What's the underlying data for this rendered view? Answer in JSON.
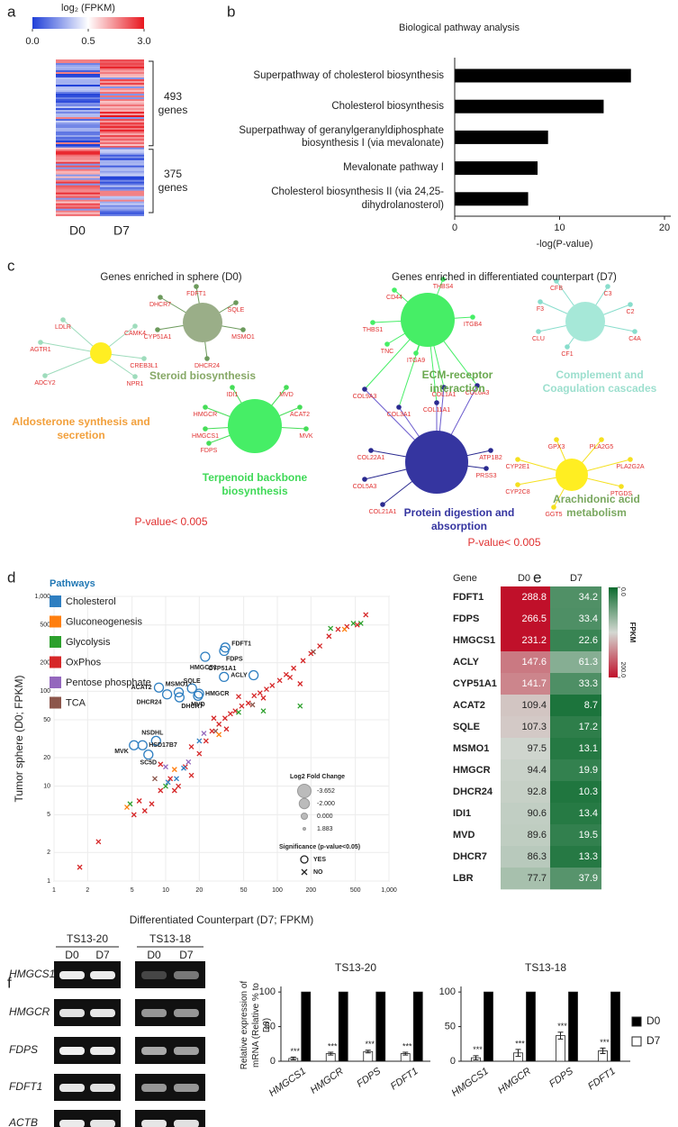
{
  "panel_labels": [
    "a",
    "b",
    "c",
    "d",
    "e",
    "f"
  ],
  "heatmap": {
    "title": "log₂ (FPKM)",
    "ticks": [
      {
        "value": 0,
        "label": "0.0"
      },
      {
        "value": 0.5,
        "label": "0.5"
      },
      {
        "value": 3,
        "label": "3.0"
      }
    ],
    "columns": [
      "D0",
      "D7"
    ],
    "groups": [
      {
        "value": 493,
        "label": "493 genes"
      },
      {
        "value": 375,
        "label": "375 genes"
      }
    ]
  },
  "networks": [
    {
      "title": "Genes enriched in sphere (D0)",
      "pvalue": "P-value< 0.005",
      "clusters": [
        {
          "label": "Aldosterone synthesis and secretion",
          "hub_color": "#ffee22",
          "label_color": "#f2a03c",
          "node_color": "#9edcbc",
          "genes": [
            "LDLR",
            "CAMK4",
            "AGTR1",
            "CREB3L1",
            "ADCY2",
            "NPR1"
          ]
        },
        {
          "label": "Steroid biosynthesis",
          "hub_color": "#9aae88",
          "label_color": "#86a866",
          "node_color": "#6c9a5c",
          "genes": [
            "FDFT1",
            "DHCR7",
            "SQLE",
            "CYP51A1",
            "MSMO1",
            "DHCR24"
          ]
        },
        {
          "label": "Terpenoid backbone biosynthesis",
          "hub_color": "#46ee66",
          "label_color": "#3fd957",
          "node_color": "#46dd58",
          "genes": [
            "IDI1",
            "MVD",
            "HMGCR",
            "ACAT2",
            "HMGCS1",
            "MVK",
            "FDPS"
          ]
        }
      ]
    },
    {
      "title": "Genes enriched in differentiated counterpart (D7)",
      "pvalue": "P-value< 0.005",
      "clusters": [
        {
          "label": "ECM-receptor interaction",
          "hub_color": "#46ee66",
          "label_color": "#6aa84f",
          "node_color": "#46ee66",
          "genes": [
            "CD44",
            "THBS4",
            "THBS1",
            "ITGB4",
            "TNC",
            "ITGA9",
            "COL9A3",
            "COL1A1",
            "COL11A1",
            "COL3A1",
            "COL6A3"
          ]
        },
        {
          "label": "Protein digestion and absorption",
          "hub_color": "#3535a0",
          "label_color": "#3535a0",
          "node_color": "#2a2a90",
          "genes": [
            "COL22A1",
            "COL5A3",
            "COL21A1",
            "ATP1B2",
            "PRSS3"
          ]
        },
        {
          "label": "Complement and Coagulation cascades",
          "hub_color": "#a6e8d8",
          "label_color": "#9cdfce",
          "node_color": "#88ddcc",
          "genes": [
            "CFB",
            "C3",
            "F3",
            "C2",
            "CLU",
            "C4A",
            "CF1"
          ]
        },
        {
          "label": "Arachidonic acid metabolism",
          "hub_color": "#ffee22",
          "label_color": "#7aa860",
          "node_color": "#f5e020",
          "genes": [
            "GPX3",
            "PLA2G5",
            "CYP2E1",
            "PLA2G2A",
            "CYP2C8",
            "PTGDS",
            "GGT5"
          ]
        }
      ]
    }
  ],
  "chart_data": [
    {
      "type": "hbar",
      "title": "Biological pathway analysis",
      "categories": [
        "Superpathway of cholesterol biosynthesis",
        "Cholesterol biosynthesis",
        "Superpathway of geranylgeranyldiphosphate biosynthesis I (via mevalonate)",
        "Mevalonate pathway I",
        "Cholesterol biosynthesis II (via 24,25-dihydrolanosterol)"
      ],
      "values": [
        16.8,
        14.2,
        8.9,
        7.9,
        7.0
      ],
      "color": "#000000",
      "xlim": [
        0,
        20.6
      ],
      "xticks": [
        0,
        10,
        20
      ],
      "xlabel": "-log(P-value)"
    },
    {
      "type": "scatter",
      "log_scale": true,
      "grid": true,
      "xlabel": "Differentiated Counterpart (D7; FPKM)",
      "ylabel": "Tumor sphere (D0; FPKM)",
      "xlim": [
        1,
        1000
      ],
      "ylim": [
        1,
        1000
      ],
      "xticks": [
        1,
        2,
        5,
        10,
        20,
        50,
        100,
        200,
        500,
        {
          "value": 1000,
          "label": "1,000"
        }
      ],
      "yticks": [
        1,
        2,
        5,
        10,
        20,
        50,
        100,
        200,
        500,
        {
          "value": 1000,
          "label": "1,000"
        }
      ],
      "legend_title": "Pathways",
      "series": [
        {
          "name": "Cholesterol",
          "color": "#2f7fc1",
          "x": [
            34.2,
            33.4,
            22.6,
            61.3,
            33.3,
            8.7,
            17.2,
            13.1,
            19.9,
            10.3,
            19.5,
            13.3,
            8.2,
            6.2,
            5.2,
            7.0,
            10.5,
            14.5,
            12.5,
            20
          ],
          "y": [
            288.8,
            266.5,
            231.2,
            147.6,
            141.7,
            109.4,
            107.3,
            97.5,
            94.4,
            92.8,
            89.6,
            86.3,
            30,
            27,
            27,
            21.5,
            11,
            15.5,
            12,
            30
          ],
          "labels": [
            "FDFT1",
            "FDPS",
            "HMGCS1",
            "ACLY",
            "CYP51A1",
            "ACAT2",
            "SQLE",
            "MSMO1",
            "HMGCR",
            "DHCR24",
            "MVD",
            "DHCR7",
            "NSDHL",
            "HSD17B7",
            "MVK",
            "SC5D",
            null,
            null,
            null,
            null
          ],
          "significant": [
            true,
            true,
            true,
            true,
            true,
            true,
            true,
            true,
            true,
            true,
            true,
            true,
            true,
            true,
            true,
            true,
            false,
            false,
            false,
            false
          ]
        },
        {
          "name": "Gluconeogenesis",
          "color": "#ff7f0e",
          "x": [
            4.5,
            12,
            30,
            400
          ],
          "y": [
            6,
            15,
            35,
            450
          ]
        },
        {
          "name": "Glycolysis",
          "color": "#2ca02c",
          "x": [
            4.8,
            10,
            45,
            75,
            160,
            480,
            560,
            300
          ],
          "y": [
            6.5,
            10,
            60,
            62,
            70,
            520,
            520,
            460
          ]
        },
        {
          "name": "OxPhos",
          "color": "#d62728",
          "x": [
            1.7,
            2.5,
            5.2,
            5.8,
            6.5,
            7.5,
            9,
            11,
            13,
            15,
            17,
            20,
            23,
            26,
            30,
            34,
            38,
            42,
            48,
            55,
            62,
            70,
            80,
            90,
            105,
            120,
            140,
            170,
            200,
            240,
            290,
            350,
            420,
            520,
            620,
            12,
            17,
            9,
            27,
            45,
            75,
            130,
            160,
            35
          ],
          "y": [
            1.4,
            2.6,
            5,
            7,
            5.5,
            6.5,
            9,
            12,
            10,
            16,
            13,
            22,
            30,
            38,
            45,
            52,
            58,
            62,
            70,
            75,
            90,
            96,
            105,
            115,
            130,
            150,
            175,
            210,
            250,
            300,
            380,
            450,
            480,
            500,
            640,
            9,
            26,
            17,
            52,
            88,
            85,
            140,
            120,
            40
          ]
        },
        {
          "name": "Pentose phosphate",
          "color": "#9467bd",
          "x": [
            10,
            16,
            22
          ],
          "y": [
            16,
            18,
            36
          ]
        },
        {
          "name": "TCA",
          "color": "#8c564b",
          "x": [
            8,
            28,
            60,
            210
          ],
          "y": [
            12,
            38,
            72,
            260
          ]
        }
      ],
      "size_legend": {
        "title": "Log2 Fold Change",
        "values": [
          -3.652,
          {
            "value": -2,
            "label": "-2.000"
          },
          {
            "value": 0,
            "label": "0.000"
          },
          1.883
        ]
      },
      "significance_legend": {
        "title": "Significance (p-value<0.05)",
        "entries": [
          "YES",
          "NO"
        ]
      }
    },
    {
      "type": "bar",
      "title": "TS13-20",
      "categories": [
        "HMGCS1",
        "HMGCR",
        "FDPS",
        "FDFT1"
      ],
      "series": [
        {
          "name": "D0",
          "color": "#000000",
          "values": [
            100,
            100,
            100,
            100
          ]
        },
        {
          "name": "D7",
          "color": "#ffffff",
          "values": [
            4,
            11,
            14,
            11
          ],
          "errors": [
            2,
            2,
            2,
            2
          ]
        }
      ],
      "annotations": [
        "***",
        "***",
        "***",
        "***"
      ],
      "ylim": [
        0,
        108
      ],
      "yticks": [
        0,
        50,
        100
      ],
      "ylabel": "Relative expression of mRNA (Relative % to D0)"
    },
    {
      "type": "bar",
      "title": "TS13-18",
      "categories": [
        "HMGCS1",
        "HMGCR",
        "FDPS",
        "FDFT1"
      ],
      "series": [
        {
          "name": "D0",
          "color": "#000000",
          "values": [
            100,
            100,
            100,
            100
          ]
        },
        {
          "name": "D7",
          "color": "#ffffff",
          "values": [
            5,
            12,
            37,
            15
          ],
          "errors": [
            3,
            5,
            5,
            4
          ]
        }
      ],
      "annotations": [
        "***",
        "***",
        "***",
        "***"
      ],
      "ylim": [
        0,
        108
      ],
      "yticks": [
        0,
        50,
        100
      ],
      "legend": "right"
    }
  ],
  "heatmap_table": {
    "headers": [
      "Gene",
      "D0",
      "D7"
    ],
    "genes": [
      "FDFT1",
      "FDPS",
      "HMGCS1",
      "ACLY",
      "CYP51A1",
      "ACAT2",
      "SQLE",
      "MSMO1",
      "HMGCR",
      "DHCR24",
      "IDI1",
      "MVD",
      "DHCR7",
      "LBR"
    ],
    "D0": [
      288.8,
      266.5,
      231.2,
      147.6,
      141.7,
      109.4,
      107.3,
      97.5,
      94.4,
      92.8,
      90.6,
      89.6,
      86.3,
      77.7
    ],
    "D7": [
      34.2,
      33.4,
      22.6,
      61.3,
      33.3,
      8.7,
      17.2,
      13.1,
      19.9,
      10.3,
      13.4,
      19.5,
      13.3,
      37.9
    ],
    "colorbar": {
      "label": "FPKM",
      "ticks": [
        {
          "value": 0,
          "label": "0.0"
        },
        {
          "value": 200,
          "label": "200.0"
        }
      ]
    }
  },
  "gel": {
    "groups": [
      "TS13-20",
      "TS13-18"
    ],
    "lanes": [
      "D0",
      "D7"
    ],
    "genes": [
      "HMGCS1",
      "HMGCR",
      "FDPS",
      "FDFT1",
      "ACTB"
    ]
  }
}
